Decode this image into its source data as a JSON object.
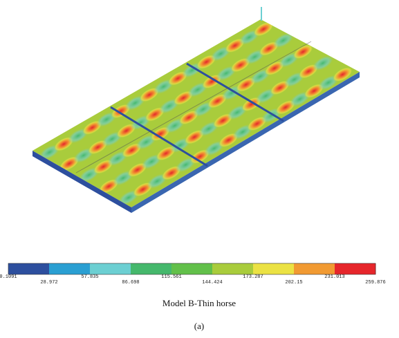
{
  "figure": {
    "legend": {
      "ticks": [
        "0.1091",
        "28.972",
        "57.835",
        "86.698",
        "115.561",
        "144.424",
        "173.287",
        "202.15",
        "231.013",
        "259.876"
      ],
      "colors": [
        "#2d4f9e",
        "#2a9fd2",
        "#6ccfd2",
        "#45b86c",
        "#62c04a",
        "#a9cc3c",
        "#ebe244",
        "#f19a32",
        "#e6262b"
      ]
    },
    "caption": "Model B-Thin horse",
    "label": "(a)"
  }
}
